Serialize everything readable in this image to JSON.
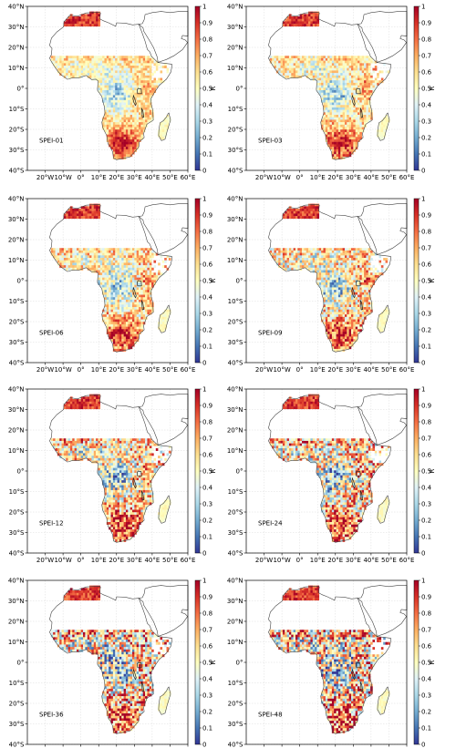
{
  "figure": {
    "lat_ticks": [
      "40°S",
      "30°S",
      "20°S",
      "10°S",
      "0°",
      "10°N",
      "20°N",
      "30°N",
      "40°N"
    ],
    "lon_ticks": [
      "20°W",
      "10°W",
      "0°",
      "10°E",
      "20°E",
      "30°E",
      "40°E",
      "50°E",
      "60°E"
    ],
    "colorbar": {
      "label": "R",
      "ticks": [
        "0",
        "0.1",
        "0.2",
        "0.3",
        "0.4",
        "0.5",
        "0.6",
        "0.7",
        "0.8",
        "0.9",
        "1"
      ],
      "colors": [
        "#313695",
        "#4575b4",
        "#74add1",
        "#abd9e9",
        "#e0f3f8",
        "#ffffbf",
        "#fee090",
        "#fdae61",
        "#f46d43",
        "#d73027",
        "#a50026"
      ]
    },
    "panels": [
      {
        "label": "SPEI-01"
      },
      {
        "label": "SPEI-03"
      },
      {
        "label": "SPEI-06"
      },
      {
        "label": "SPEI-09"
      },
      {
        "label": "SPEI-12"
      },
      {
        "label": "SPEI-24"
      },
      {
        "label": "SPEI-36"
      },
      {
        "label": "SPEI-48"
      }
    ]
  }
}
